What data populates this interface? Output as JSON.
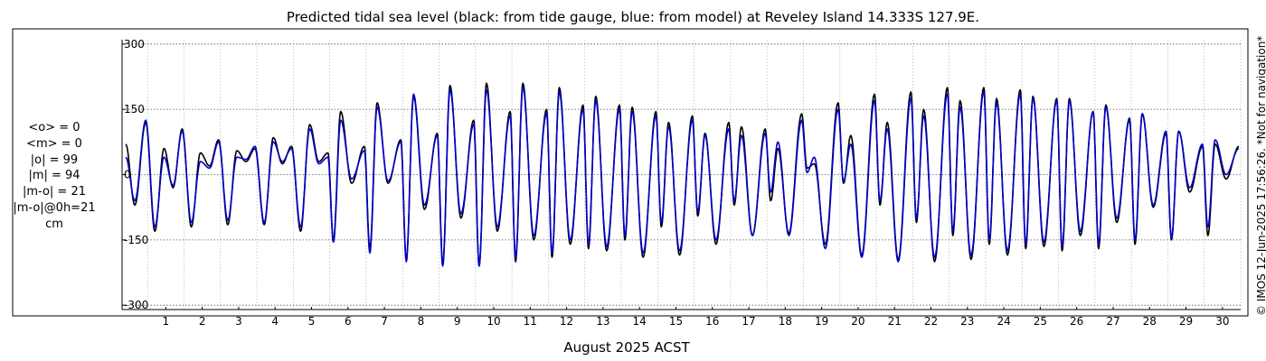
{
  "chart_data": {
    "type": "line",
    "title": "Predicted tidal sea level (black: from tide gauge, blue: from model) at Reveley Island 14.333S 127.9E.",
    "xlabel": "August 2025 ACST",
    "ylabel": "",
    "x_tick_labels": [
      "1",
      "2",
      "3",
      "4",
      "5",
      "6",
      "7",
      "8",
      "9",
      "10",
      "11",
      "12",
      "13",
      "14",
      "15",
      "16",
      "17",
      "18",
      "19",
      "20",
      "21",
      "22",
      "23",
      "24",
      "25",
      "26",
      "27",
      "28",
      "29",
      "30"
    ],
    "y_ticks": [
      300,
      150,
      0,
      -150,
      -300
    ],
    "y_tick_labels": [
      "300",
      "150",
      "0",
      "-150",
      "-300"
    ],
    "ylim": [
      -310,
      310
    ],
    "xlim_days": [
      0.3,
      31.0
    ],
    "grid": true,
    "series": [
      {
        "name": "tide gauge",
        "color": "#000000",
        "highs": [
          [
            0.4,
            70
          ],
          [
            0.95,
            120
          ],
          [
            1.45,
            60
          ],
          [
            1.95,
            105
          ],
          [
            2.45,
            50
          ],
          [
            2.95,
            80
          ],
          [
            3.45,
            55
          ],
          [
            3.95,
            60
          ],
          [
            4.45,
            85
          ],
          [
            4.95,
            65
          ],
          [
            5.45,
            115
          ],
          [
            5.95,
            50
          ],
          [
            6.3,
            145
          ],
          [
            6.95,
            65
          ],
          [
            7.3,
            165
          ],
          [
            7.95,
            80
          ],
          [
            8.3,
            180
          ],
          [
            8.95,
            95
          ],
          [
            9.3,
            205
          ],
          [
            9.95,
            125
          ],
          [
            10.3,
            210
          ],
          [
            10.95,
            145
          ],
          [
            11.3,
            210
          ],
          [
            11.95,
            150
          ],
          [
            12.3,
            200
          ],
          [
            12.95,
            160
          ],
          [
            13.3,
            180
          ],
          [
            13.95,
            160
          ],
          [
            14.3,
            155
          ],
          [
            14.95,
            145
          ],
          [
            15.3,
            120
          ],
          [
            15.95,
            135
          ],
          [
            16.3,
            95
          ],
          [
            16.95,
            120
          ],
          [
            17.3,
            110
          ],
          [
            17.95,
            105
          ],
          [
            18.3,
            60
          ],
          [
            18.95,
            140
          ],
          [
            19.3,
            25
          ],
          [
            19.95,
            165
          ],
          [
            20.3,
            90
          ],
          [
            20.95,
            185
          ],
          [
            21.3,
            120
          ],
          [
            21.95,
            190
          ],
          [
            22.3,
            150
          ],
          [
            22.95,
            200
          ],
          [
            23.3,
            170
          ],
          [
            23.95,
            200
          ],
          [
            24.3,
            175
          ],
          [
            24.95,
            195
          ],
          [
            25.3,
            180
          ],
          [
            25.95,
            175
          ],
          [
            26.3,
            175
          ],
          [
            26.95,
            145
          ],
          [
            27.3,
            160
          ],
          [
            27.95,
            130
          ],
          [
            28.3,
            140
          ],
          [
            28.95,
            95
          ],
          [
            29.3,
            100
          ],
          [
            29.95,
            65
          ],
          [
            30.3,
            70
          ],
          [
            30.95,
            65
          ]
        ],
        "lows": [
          [
            0.65,
            -70
          ],
          [
            1.2,
            -130
          ],
          [
            1.7,
            -30
          ],
          [
            2.2,
            -120
          ],
          [
            2.7,
            20
          ],
          [
            3.2,
            -115
          ],
          [
            3.7,
            30
          ],
          [
            4.2,
            -115
          ],
          [
            4.7,
            25
          ],
          [
            5.2,
            -130
          ],
          [
            5.7,
            30
          ],
          [
            6.1,
            -150
          ],
          [
            6.6,
            -20
          ],
          [
            7.1,
            -170
          ],
          [
            7.6,
            -20
          ],
          [
            8.1,
            -195
          ],
          [
            8.6,
            -80
          ],
          [
            9.1,
            -205
          ],
          [
            9.6,
            -100
          ],
          [
            10.1,
            -210
          ],
          [
            10.6,
            -130
          ],
          [
            11.1,
            -200
          ],
          [
            11.6,
            -150
          ],
          [
            12.1,
            -190
          ],
          [
            12.6,
            -160
          ],
          [
            13.1,
            -170
          ],
          [
            13.6,
            -175
          ],
          [
            14.1,
            -150
          ],
          [
            14.6,
            -190
          ],
          [
            15.1,
            -120
          ],
          [
            15.6,
            -185
          ],
          [
            16.1,
            -95
          ],
          [
            16.6,
            -160
          ],
          [
            17.1,
            -70
          ],
          [
            17.6,
            -140
          ],
          [
            18.1,
            -60
          ],
          [
            18.6,
            -135
          ],
          [
            19.1,
            15
          ],
          [
            19.6,
            -160
          ],
          [
            20.1,
            -20
          ],
          [
            20.6,
            -185
          ],
          [
            21.1,
            -70
          ],
          [
            21.6,
            -195
          ],
          [
            22.1,
            -110
          ],
          [
            22.6,
            -200
          ],
          [
            23.1,
            -140
          ],
          [
            23.6,
            -195
          ],
          [
            24.1,
            -160
          ],
          [
            24.6,
            -185
          ],
          [
            25.1,
            -170
          ],
          [
            25.6,
            -165
          ],
          [
            26.1,
            -175
          ],
          [
            26.6,
            -140
          ],
          [
            27.1,
            -170
          ],
          [
            27.6,
            -110
          ],
          [
            28.1,
            -160
          ],
          [
            28.6,
            -75
          ],
          [
            29.1,
            -150
          ],
          [
            29.6,
            -40
          ],
          [
            30.1,
            -140
          ],
          [
            30.6,
            -10
          ]
        ]
      },
      {
        "name": "model",
        "color": "#0000cc",
        "highs": [
          [
            0.4,
            40
          ],
          [
            0.95,
            125
          ],
          [
            1.45,
            40
          ],
          [
            1.95,
            100
          ],
          [
            2.45,
            30
          ],
          [
            2.95,
            75
          ],
          [
            3.45,
            40
          ],
          [
            3.95,
            65
          ],
          [
            4.45,
            75
          ],
          [
            4.95,
            60
          ],
          [
            5.45,
            105
          ],
          [
            5.95,
            40
          ],
          [
            6.3,
            125
          ],
          [
            6.95,
            55
          ],
          [
            7.3,
            155
          ],
          [
            7.95,
            75
          ],
          [
            8.3,
            185
          ],
          [
            8.95,
            90
          ],
          [
            9.3,
            195
          ],
          [
            9.95,
            115
          ],
          [
            10.3,
            195
          ],
          [
            10.95,
            135
          ],
          [
            11.3,
            200
          ],
          [
            11.95,
            140
          ],
          [
            12.3,
            190
          ],
          [
            12.95,
            150
          ],
          [
            13.3,
            170
          ],
          [
            13.95,
            150
          ],
          [
            14.3,
            145
          ],
          [
            14.95,
            135
          ],
          [
            15.3,
            110
          ],
          [
            15.95,
            125
          ],
          [
            16.3,
            90
          ],
          [
            16.95,
            105
          ],
          [
            17.3,
            90
          ],
          [
            17.95,
            95
          ],
          [
            18.3,
            75
          ],
          [
            18.95,
            125
          ],
          [
            19.3,
            40
          ],
          [
            19.95,
            150
          ],
          [
            20.3,
            70
          ],
          [
            20.95,
            170
          ],
          [
            21.3,
            105
          ],
          [
            21.95,
            175
          ],
          [
            22.3,
            135
          ],
          [
            22.95,
            185
          ],
          [
            23.3,
            155
          ],
          [
            23.95,
            190
          ],
          [
            24.3,
            165
          ],
          [
            24.95,
            185
          ],
          [
            25.3,
            175
          ],
          [
            25.95,
            170
          ],
          [
            26.3,
            170
          ],
          [
            26.95,
            145
          ],
          [
            27.3,
            155
          ],
          [
            27.95,
            125
          ],
          [
            28.3,
            140
          ],
          [
            28.95,
            100
          ],
          [
            29.3,
            100
          ],
          [
            29.95,
            70
          ],
          [
            30.3,
            80
          ],
          [
            30.95,
            60
          ]
        ],
        "lows": [
          [
            0.65,
            -60
          ],
          [
            1.2,
            -120
          ],
          [
            1.7,
            -25
          ],
          [
            2.2,
            -110
          ],
          [
            2.7,
            15
          ],
          [
            3.2,
            -105
          ],
          [
            3.7,
            35
          ],
          [
            4.2,
            -110
          ],
          [
            4.7,
            30
          ],
          [
            5.2,
            -120
          ],
          [
            5.7,
            25
          ],
          [
            6.1,
            -155
          ],
          [
            6.6,
            -10
          ],
          [
            7.1,
            -180
          ],
          [
            7.6,
            -15
          ],
          [
            8.1,
            -200
          ],
          [
            8.6,
            -70
          ],
          [
            9.1,
            -210
          ],
          [
            9.6,
            -90
          ],
          [
            10.1,
            -210
          ],
          [
            10.6,
            -120
          ],
          [
            11.1,
            -190
          ],
          [
            11.6,
            -140
          ],
          [
            12.1,
            -180
          ],
          [
            12.6,
            -150
          ],
          [
            13.1,
            -160
          ],
          [
            13.6,
            -165
          ],
          [
            14.1,
            -140
          ],
          [
            14.6,
            -180
          ],
          [
            15.1,
            -110
          ],
          [
            15.6,
            -175
          ],
          [
            16.1,
            -85
          ],
          [
            16.6,
            -150
          ],
          [
            17.1,
            -60
          ],
          [
            17.6,
            -140
          ],
          [
            18.1,
            -40
          ],
          [
            18.6,
            -140
          ],
          [
            19.1,
            5
          ],
          [
            19.6,
            -170
          ],
          [
            20.1,
            -15
          ],
          [
            20.6,
            -190
          ],
          [
            21.1,
            -60
          ],
          [
            21.6,
            -200
          ],
          [
            22.1,
            -100
          ],
          [
            22.6,
            -190
          ],
          [
            23.1,
            -130
          ],
          [
            23.6,
            -185
          ],
          [
            24.1,
            -150
          ],
          [
            24.6,
            -175
          ],
          [
            25.1,
            -160
          ],
          [
            25.6,
            -155
          ],
          [
            26.1,
            -165
          ],
          [
            26.6,
            -130
          ],
          [
            27.1,
            -160
          ],
          [
            27.6,
            -100
          ],
          [
            28.1,
            -150
          ],
          [
            28.6,
            -70
          ],
          [
            29.1,
            -145
          ],
          [
            29.6,
            -30
          ],
          [
            30.1,
            -120
          ],
          [
            30.6,
            0
          ]
        ]
      }
    ]
  },
  "stats_lines": [
    "<o> = 0",
    "<m> = 0",
    "|o| = 99",
    "|m| = 94",
    "|m-o| = 21",
    "|m-o|@0h=21",
    "cm"
  ],
  "copyright": "© IMOS 12-Jun-2025 17:56:26. *Not for navigation*"
}
